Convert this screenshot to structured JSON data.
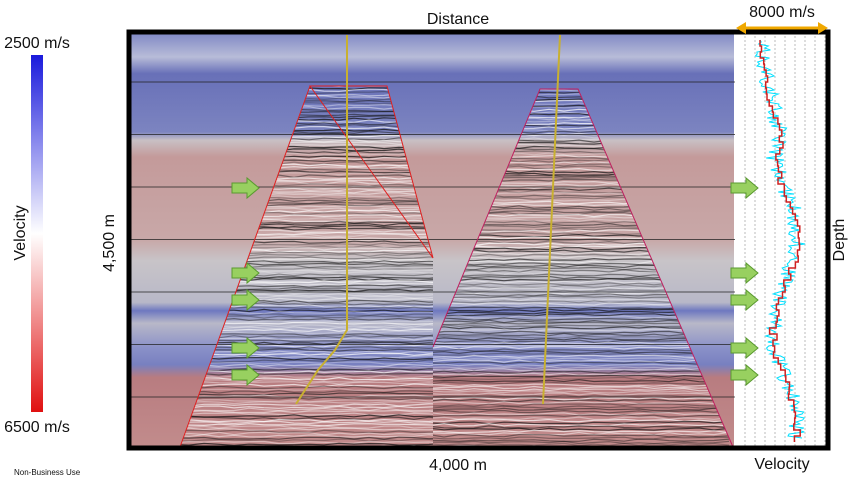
{
  "colorbar": {
    "top_label": "2500 m/s",
    "title": "Velocity",
    "bottom_label": "6500 m/s"
  },
  "section": {
    "title": "Distance",
    "depth_label": "4,500 m",
    "width_label": "4,000 m"
  },
  "log": {
    "scale_label": "8000 m/s",
    "depth_label": "Depth",
    "title": "Velocity"
  },
  "footer": "Non-Business Use"
}
